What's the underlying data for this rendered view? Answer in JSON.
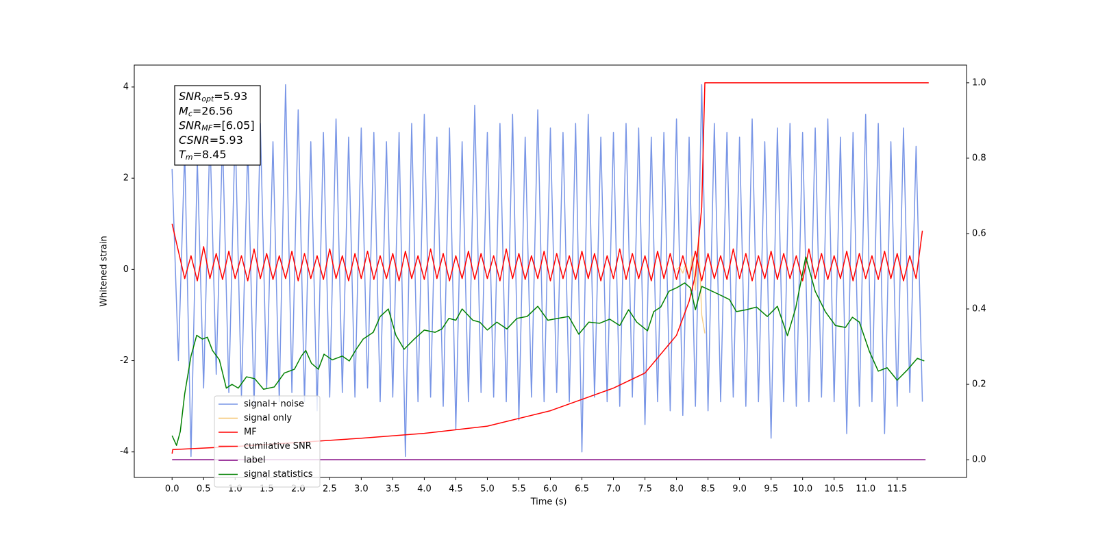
{
  "chart_data": {
    "type": "line",
    "xlabel": "Time (s)",
    "ylabel": "Whitened strain",
    "xlim": [
      -0.6,
      12.6
    ],
    "ylim": [
      -4.56,
      4.48
    ],
    "y2lim": [
      -0.047,
      1.047
    ],
    "xticks": [
      {
        "value": 0,
        "label": "0.0"
      },
      0.5,
      {
        "value": 1,
        "label": "1.0"
      },
      1.5,
      {
        "value": 2,
        "label": "2.0"
      },
      2.5,
      {
        "value": 3,
        "label": "3.0"
      },
      3.5,
      {
        "value": 4,
        "label": "4.0"
      },
      4.5,
      {
        "value": 5,
        "label": "5.0"
      },
      5.5,
      {
        "value": 6,
        "label": "6.0"
      },
      6.5,
      {
        "value": 7,
        "label": "7.0"
      },
      7.5,
      {
        "value": 8,
        "label": "8.0"
      },
      8.5,
      {
        "value": 9,
        "label": "9.0"
      },
      9.5,
      {
        "value": 10,
        "label": "10.0"
      },
      10.5,
      {
        "value": 11,
        "label": "11.0"
      },
      11.5
    ],
    "yticks": [
      -4,
      -2,
      0,
      2,
      4
    ],
    "y2ticks": [
      {
        "value": 0,
        "label": "0.0"
      },
      0.2,
      0.4,
      0.6,
      0.8,
      {
        "value": 1,
        "label": "1.0"
      }
    ],
    "legend": "lower left",
    "annotation": [
      {
        "text": "SNR",
        "sub": "opt",
        "rest": "=5.93"
      },
      {
        "text": "M",
        "sub": "c",
        "rest": "=26.56"
      },
      {
        "text": "SNR",
        "sub": "MF",
        "rest": "=[6.05]"
      },
      {
        "text": "CSNR",
        "rest": "=5.93"
      },
      {
        "text": "T",
        "sub": "m",
        "rest": "=8.45"
      }
    ],
    "x": [
      0,
      0.1,
      0.2,
      0.3,
      0.4,
      0.5,
      0.6,
      0.7,
      0.8,
      0.9,
      1,
      1.1,
      1.2,
      1.3,
      1.4,
      1.5,
      1.6,
      1.7,
      1.8,
      1.9,
      2,
      2.1,
      2.2,
      2.3,
      2.4,
      2.5,
      2.6,
      2.7,
      2.8,
      2.9,
      3,
      3.1,
      3.2,
      3.3,
      3.4,
      3.5,
      3.6,
      3.7,
      3.8,
      3.9,
      4,
      4.1,
      4.2,
      4.3,
      4.4,
      4.5,
      4.6,
      4.7,
      4.8,
      4.9,
      5,
      5.1,
      5.2,
      5.3,
      5.4,
      5.5,
      5.6,
      5.7,
      5.8,
      5.9,
      6,
      6.1,
      6.2,
      6.3,
      6.4,
      6.5,
      6.6,
      6.7,
      6.8,
      6.9,
      7,
      7.1,
      7.2,
      7.3,
      7.4,
      7.5,
      7.6,
      7.7,
      7.8,
      7.9,
      8,
      8.1,
      8.2,
      8.3,
      8.4,
      8.5,
      8.6,
      8.7,
      8.8,
      8.9,
      9,
      9.1,
      9.2,
      9.3,
      9.4,
      9.5,
      9.6,
      9.7,
      9.8,
      9.9,
      10,
      10.1,
      10.2,
      10.3,
      10.4,
      10.5,
      10.6,
      10.7,
      10.8,
      10.9,
      11,
      11.1,
      11.2,
      11.3,
      11.4,
      11.5,
      11.6,
      11.7,
      11.8,
      11.9
    ],
    "series": [
      {
        "name": "signal+ noise",
        "color": "#7895e6",
        "values": [
          2.2,
          -2.0,
          2.6,
          -4.1,
          2.4,
          -2.6,
          3.0,
          -2.3,
          2.9,
          -2.7,
          3.1,
          -2.8,
          2.7,
          -3.0,
          3.2,
          -2.6,
          2.8,
          -2.9,
          4.05,
          -2.7,
          3.5,
          -2.9,
          2.8,
          -3.1,
          3.0,
          -2.8,
          3.3,
          -2.7,
          2.9,
          -2.8,
          3.1,
          -2.6,
          3.0,
          -2.9,
          2.8,
          -2.8,
          3.0,
          -4.1,
          3.2,
          -2.9,
          3.4,
          -2.8,
          2.9,
          -3.0,
          3.1,
          -3.5,
          2.8,
          -2.9,
          3.6,
          -2.7,
          3.0,
          -2.8,
          3.2,
          -2.9,
          3.4,
          -3.3,
          2.9,
          -2.8,
          3.5,
          -2.9,
          3.1,
          -2.7,
          3.0,
          -2.9,
          3.2,
          -4.0,
          3.4,
          -2.8,
          2.9,
          -2.9,
          3.0,
          -3.0,
          3.2,
          -2.8,
          3.1,
          -3.4,
          2.9,
          -2.9,
          3.0,
          -3.1,
          3.3,
          -3.2,
          2.9,
          -3.0,
          4.05,
          -3.1,
          3.2,
          -2.9,
          3.0,
          -2.8,
          2.9,
          -3.0,
          3.3,
          -2.9,
          2.8,
          -3.7,
          3.1,
          -2.9,
          3.2,
          -3.0,
          3.0,
          -2.9,
          3.1,
          -2.8,
          3.3,
          -2.9,
          2.9,
          -3.6,
          3.0,
          -3.0,
          3.4,
          -2.9,
          3.2,
          -3.6,
          2.8,
          -3.0,
          3.1,
          -2.7,
          2.7,
          -2.9
        ]
      },
      {
        "name": "signal only",
        "color": "#f5c36e",
        "x": [
          8.0,
          8.05,
          8.1,
          8.15,
          8.2,
          8.25,
          8.3,
          8.35,
          8.4,
          8.45
        ],
        "values": [
          0.0,
          0.05,
          -0.08,
          0.12,
          -0.2,
          0.3,
          -0.45,
          0.7,
          -1.0,
          -1.4
        ]
      },
      {
        "name": "MF",
        "color": "#ff0000",
        "values": [
          1.0,
          0.4,
          -0.2,
          0.3,
          -0.25,
          0.5,
          -0.2,
          0.35,
          -0.22,
          0.4,
          -0.2,
          0.3,
          -0.25,
          0.45,
          -0.2,
          0.35,
          -0.22,
          0.3,
          -0.2,
          0.4,
          -0.25,
          0.35,
          -0.2,
          0.3,
          -0.22,
          0.45,
          -0.2,
          0.3,
          -0.25,
          0.35,
          -0.2,
          0.4,
          -0.22,
          0.3,
          -0.2,
          0.35,
          -0.25,
          0.4,
          -0.2,
          0.3,
          -0.22,
          0.45,
          -0.2,
          0.35,
          -0.25,
          0.3,
          -0.2,
          0.4,
          -0.22,
          0.35,
          -0.2,
          0.3,
          -0.25,
          0.45,
          -0.2,
          0.35,
          -0.22,
          0.3,
          -0.2,
          0.4,
          -0.25,
          0.35,
          -0.2,
          0.3,
          -0.22,
          0.4,
          -0.2,
          0.35,
          -0.25,
          0.3,
          -0.2,
          0.45,
          -0.22,
          0.35,
          -0.2,
          0.3,
          -0.25,
          0.4,
          -0.2,
          0.35,
          -0.22,
          0.3,
          -0.2,
          0.4,
          -0.25,
          0.35,
          -0.2,
          0.3,
          -0.22,
          0.45,
          -0.2,
          0.35,
          -0.25,
          0.3,
          -0.2,
          0.4,
          -0.22,
          0.35,
          -0.2,
          0.3,
          -0.25,
          0.45,
          -0.2,
          0.35,
          -0.22,
          0.3,
          -0.2,
          0.4,
          -0.25,
          0.35,
          -0.2,
          0.3,
          -0.22,
          0.4,
          -0.2,
          0.35,
          -0.25,
          0.3,
          -0.2,
          0.85
        ]
      },
      {
        "name": "cumilative SNR",
        "color": "#ff0000",
        "axis": "y2",
        "x": [
          0,
          0.01,
          1,
          2,
          3,
          4,
          5,
          6,
          6.5,
          7,
          7.5,
          8.0,
          8.2,
          8.3,
          8.4,
          8.45,
          12.0
        ],
        "values": [
          0.016,
          0.027,
          0.035,
          0.046,
          0.057,
          0.07,
          0.089,
          0.13,
          0.16,
          0.19,
          0.23,
          0.33,
          0.42,
          0.49,
          0.67,
          1.0,
          1.0
        ]
      },
      {
        "name": "label",
        "color": "#800080",
        "axis": "y2",
        "x": [
          0,
          11.95
        ],
        "values": [
          0,
          0
        ]
      },
      {
        "name": "signal statistics",
        "color": "#008000",
        "axis": "y2",
        "x": [
          0,
          0.07,
          0.13,
          0.2,
          0.3,
          0.39,
          0.48,
          0.56,
          0.64,
          0.75,
          0.86,
          0.95,
          1.05,
          1.18,
          1.31,
          1.45,
          1.62,
          1.78,
          1.94,
          2.05,
          2.12,
          2.21,
          2.32,
          2.41,
          2.54,
          2.7,
          2.81,
          2.92,
          3.03,
          3.19,
          3.3,
          3.43,
          3.55,
          3.68,
          3.84,
          4.0,
          4.17,
          4.28,
          4.39,
          4.5,
          4.6,
          4.77,
          4.88,
          5.0,
          5.15,
          5.31,
          5.47,
          5.63,
          5.8,
          5.96,
          6.12,
          6.29,
          6.45,
          6.61,
          6.78,
          6.94,
          7.1,
          7.24,
          7.37,
          7.54,
          7.64,
          7.75,
          7.88,
          8.0,
          8.13,
          8.22,
          8.3,
          8.4,
          8.68,
          8.84,
          8.95,
          9.11,
          9.27,
          9.44,
          9.6,
          9.76,
          9.89,
          10.05,
          10.2,
          10.36,
          10.52,
          10.68,
          10.79,
          10.9,
          11.06,
          11.2,
          11.34,
          11.5,
          11.66,
          11.82,
          11.93
        ],
        "values": [
          0.064,
          0.038,
          0.075,
          0.175,
          0.275,
          0.33,
          0.32,
          0.325,
          0.29,
          0.265,
          0.19,
          0.2,
          0.19,
          0.22,
          0.215,
          0.187,
          0.193,
          0.23,
          0.24,
          0.275,
          0.29,
          0.256,
          0.24,
          0.28,
          0.265,
          0.275,
          0.262,
          0.293,
          0.32,
          0.338,
          0.38,
          0.4,
          0.33,
          0.293,
          0.32,
          0.344,
          0.338,
          0.347,
          0.375,
          0.37,
          0.4,
          0.37,
          0.365,
          0.344,
          0.365,
          0.347,
          0.375,
          0.38,
          0.407,
          0.37,
          0.375,
          0.38,
          0.333,
          0.365,
          0.362,
          0.373,
          0.356,
          0.398,
          0.365,
          0.342,
          0.393,
          0.405,
          0.447,
          0.456,
          0.469,
          0.456,
          0.398,
          0.46,
          0.438,
          0.425,
          0.393,
          0.398,
          0.405,
          0.38,
          0.407,
          0.329,
          0.402,
          0.538,
          0.447,
          0.393,
          0.356,
          0.351,
          0.378,
          0.365,
          0.287,
          0.235,
          0.244,
          0.211,
          0.238,
          0.269,
          0.262
        ]
      }
    ]
  }
}
